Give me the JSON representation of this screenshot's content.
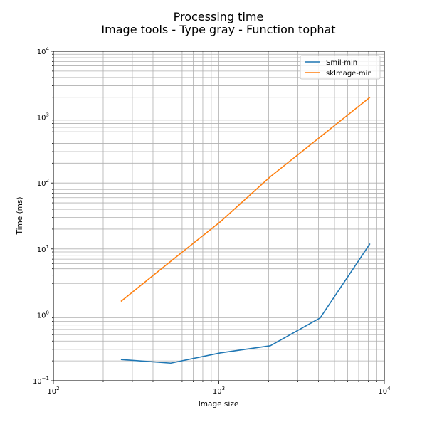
{
  "chart_data": {
    "type": "line",
    "title": "Processing time",
    "subtitle": "Image tools - Type gray - Function tophat",
    "xlabel": "Image size",
    "ylabel": "Time (ms)",
    "xscale": "log",
    "yscale": "log",
    "xlim": [
      100,
      10000
    ],
    "ylim": [
      0.1,
      10000
    ],
    "grid": "both (major and minor)",
    "legend_position": "top-right",
    "x_ticks": [
      {
        "base": "10",
        "exp": "2"
      },
      {
        "base": "10",
        "exp": "3"
      },
      {
        "base": "10",
        "exp": "4"
      }
    ],
    "y_ticks": [
      {
        "base": "10",
        "exp": "−1"
      },
      {
        "base": "10",
        "exp": "0"
      },
      {
        "base": "10",
        "exp": "1"
      },
      {
        "base": "10",
        "exp": "2"
      },
      {
        "base": "10",
        "exp": "3"
      },
      {
        "base": "10",
        "exp": "4"
      }
    ],
    "x": [
      256,
      512,
      1024,
      2048,
      4096,
      8192
    ],
    "series": [
      {
        "name": "Smil-min",
        "color": "#1f77b4",
        "values": [
          0.21,
          0.185,
          0.265,
          0.34,
          0.9,
          12
        ]
      },
      {
        "name": "skImage-min",
        "color": "#ff7f0e",
        "values": [
          1.6,
          6.5,
          26,
          125,
          500,
          2000
        ]
      }
    ]
  }
}
